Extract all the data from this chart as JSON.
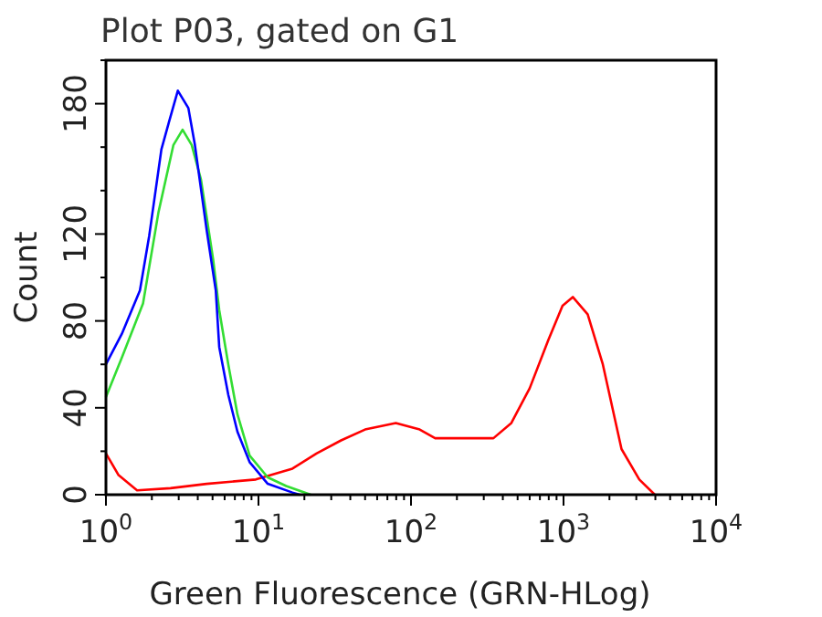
{
  "chart_data": {
    "type": "line",
    "title": "Plot P03, gated on G1",
    "xlabel": "Green Fluorescence (GRN-HLog)",
    "ylabel": "Count",
    "log": "x",
    "xlim": [
      1,
      10000
    ],
    "xticks": [
      {
        "value": 1,
        "label": "10$^{0}$"
      },
      {
        "value": 2,
        "label": null
      },
      {
        "value": 3,
        "label": null
      },
      {
        "value": 4,
        "label": null
      },
      {
        "value": 5,
        "label": null
      },
      {
        "value": 6,
        "label": null
      },
      {
        "value": 7,
        "label": null
      },
      {
        "value": 8,
        "label": null
      },
      {
        "value": 9,
        "label": null
      },
      {
        "value": 10,
        "label": "10$^{1}$"
      },
      {
        "value": 20,
        "label": null
      },
      {
        "value": 30,
        "label": null
      },
      {
        "value": 40,
        "label": null
      },
      {
        "value": 50,
        "label": null
      },
      {
        "value": 60,
        "label": null
      },
      {
        "value": 70,
        "label": null
      },
      {
        "value": 80,
        "label": null
      },
      {
        "value": 90,
        "label": null
      },
      {
        "value": 100,
        "label": "10$^{2}$"
      },
      {
        "value": 200,
        "label": null
      },
      {
        "value": 300,
        "label": null
      },
      {
        "value": 400,
        "label": null
      },
      {
        "value": 500,
        "label": null
      },
      {
        "value": 600,
        "label": null
      },
      {
        "value": 700,
        "label": null
      },
      {
        "value": 800,
        "label": null
      },
      {
        "value": 900,
        "label": null
      },
      {
        "value": 1000,
        "label": "10$^{3}$"
      },
      {
        "value": 2000,
        "label": null
      },
      {
        "value": 3000,
        "label": null
      },
      {
        "value": 4000,
        "label": null
      },
      {
        "value": 5000,
        "label": null
      },
      {
        "value": 6000,
        "label": null
      },
      {
        "value": 7000,
        "label": null
      },
      {
        "value": 8000,
        "label": null
      },
      {
        "value": 9000,
        "label": null
      },
      {
        "value": 10000,
        "label": "10$^{4}$"
      }
    ],
    "ylim": [
      0,
      200
    ],
    "yticks": [
      0,
      {
        "value": 20,
        "label": null
      },
      40,
      {
        "value": 60,
        "label": null
      },
      80,
      {
        "value": 100,
        "label": null
      },
      120,
      {
        "value": 140,
        "label": null
      },
      {
        "value": 160,
        "label": null
      },
      180,
      {
        "value": 200,
        "label": null
      }
    ],
    "grid": false,
    "marker": "none",
    "line_style": "solid",
    "series": [
      {
        "color": "#ff0000",
        "x": [
          1,
          1.21,
          1.6,
          2.65,
          4.57,
          9.6,
          16.7,
          24,
          34.8,
          50,
          79.5,
          114,
          144,
          347,
          455,
          600,
          793,
          985,
          1150,
          1440,
          1810,
          2400,
          3140,
          3970
        ],
        "values": [
          19,
          9,
          2,
          3,
          5,
          7,
          12,
          19,
          25,
          30,
          33,
          30,
          26,
          26,
          33,
          49,
          71,
          87,
          91,
          83,
          60,
          21,
          7,
          0
        ]
      },
      {
        "color": "#33dd33",
        "x": [
          1,
          1.27,
          1.75,
          2.21,
          2.77,
          3.18,
          3.65,
          4.2,
          5.05,
          5.53,
          6.34,
          7.28,
          8.75,
          11.5,
          15.2,
          22
        ],
        "values": [
          45,
          63,
          88,
          130,
          161,
          168,
          161,
          145,
          108,
          85,
          60,
          37,
          18,
          8,
          4,
          0
        ]
      },
      {
        "color": "#0000ff",
        "x": [
          1,
          1.27,
          1.67,
          1.92,
          2.31,
          2.6,
          2.96,
          3.47,
          3.83,
          4.57,
          5.25,
          5.53,
          6.34,
          7.28,
          8.75,
          11.5,
          16.7,
          18.6
        ],
        "values": [
          60,
          74,
          94,
          119,
          159,
          172,
          186,
          178,
          161,
          122,
          94,
          68,
          46,
          29,
          15,
          5,
          1,
          0
        ]
      }
    ]
  }
}
